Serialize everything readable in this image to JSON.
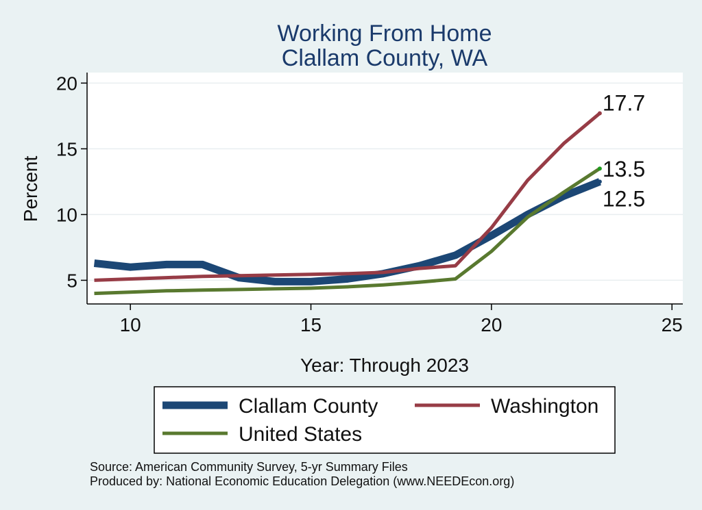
{
  "chart_data": {
    "type": "line",
    "title": [
      "Working From Home",
      "Clallam County, WA"
    ],
    "xlabel": "Year: Through 2023",
    "ylabel": "Percent",
    "xlim": [
      8.8,
      25.3
    ],
    "ylim": [
      3.2,
      20.8
    ],
    "x_ticks": [
      10,
      15,
      20,
      25
    ],
    "y_ticks": [
      5,
      10,
      15,
      20
    ],
    "grid": true,
    "legend_position": "bottom",
    "series": [
      {
        "name": "Clallam County",
        "color": "#1c4775",
        "x": [
          9,
          10,
          11,
          12,
          13,
          14,
          15,
          16,
          17,
          18,
          19,
          20,
          21,
          22,
          23
        ],
        "y": [
          6.3,
          6.0,
          6.2,
          6.2,
          5.2,
          4.9,
          4.9,
          5.1,
          5.5,
          6.1,
          6.9,
          8.4,
          10.0,
          11.4,
          12.5
        ],
        "end_label": "12.5"
      },
      {
        "name": "Washington",
        "color": "#973c46",
        "x": [
          9,
          10,
          11,
          12,
          13,
          14,
          15,
          16,
          17,
          18,
          19,
          20,
          21,
          22,
          23
        ],
        "y": [
          5.0,
          5.1,
          5.2,
          5.3,
          5.35,
          5.4,
          5.45,
          5.5,
          5.6,
          5.9,
          6.1,
          9.0,
          12.6,
          15.4,
          17.7
        ],
        "end_label": "17.7"
      },
      {
        "name": "United States",
        "color": "#59792f",
        "x": [
          9,
          10,
          11,
          12,
          13,
          14,
          15,
          16,
          17,
          18,
          19,
          20,
          21,
          22,
          23
        ],
        "y": [
          4.0,
          4.1,
          4.2,
          4.25,
          4.3,
          4.35,
          4.4,
          4.5,
          4.65,
          4.85,
          5.1,
          7.2,
          9.8,
          11.7,
          13.5
        ],
        "end_label": "13.5"
      }
    ],
    "notes": [
      "Source: American Community Survey, 5-yr Summary Files",
      "Produced by: National Economic Education Delegation (www.NEEDEcon.org)"
    ]
  }
}
